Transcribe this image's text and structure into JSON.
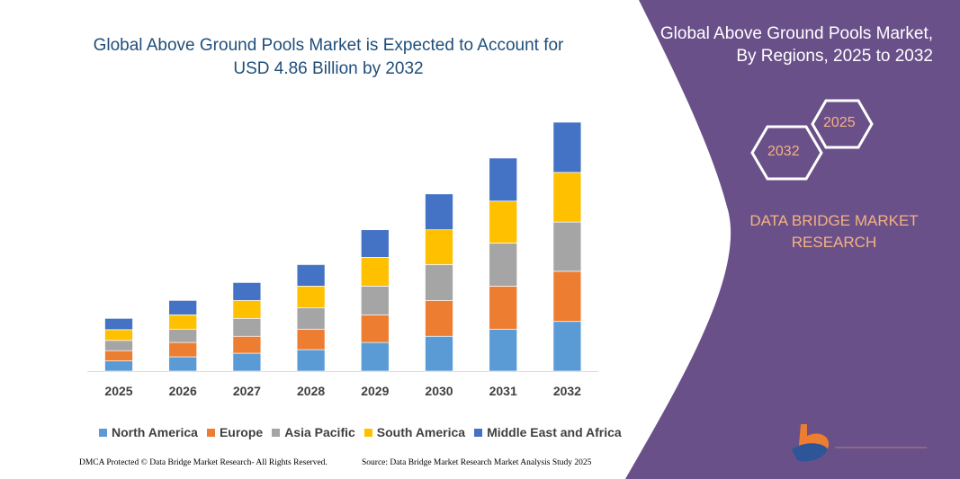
{
  "title": "Global Above Ground Pools Market is Expected to Account for USD 4.86 Billion by 2032",
  "right_panel": {
    "title_line1": "Global Above Ground Pools Market,",
    "title_line2": "By Regions, 2025 to 2032",
    "hex_start": "2025",
    "hex_end": "2032",
    "brand_line1": "DATA BRIDGE MARKET",
    "brand_line2": "RESEARCH",
    "logo_text": "DATA BRIDGE MARKET RESEARCH",
    "panel_color": "#6A5089"
  },
  "footer": {
    "left": "DMCA Protected © Data Bridge Market Research- All Rights Reserved.",
    "right": "Source: Data Bridge Market Research Market Analysis Study 2025"
  },
  "chart_data": {
    "type": "bar",
    "stacked": true,
    "title": "Global Above Ground Pools Market is Expected to Account for USD 4.86 Billion by 2032",
    "xlabel": "",
    "ylabel": "",
    "grid": false,
    "y_axis_shown": false,
    "legend_position": "bottom",
    "categories": [
      "2025",
      "2026",
      "2027",
      "2028",
      "2029",
      "2030",
      "2031",
      "2032"
    ],
    "series": [
      {
        "name": "North America",
        "color": "#5B9BD5",
        "values": [
          0.2,
          0.28,
          0.35,
          0.42,
          0.56,
          0.68,
          0.82,
          0.97
        ]
      },
      {
        "name": "Europe",
        "color": "#ED7D31",
        "values": [
          0.2,
          0.28,
          0.33,
          0.4,
          0.54,
          0.7,
          0.84,
          0.98
        ]
      },
      {
        "name": "Asia Pacific",
        "color": "#A5A5A5",
        "values": [
          0.2,
          0.26,
          0.35,
          0.42,
          0.56,
          0.7,
          0.84,
          0.96
        ]
      },
      {
        "name": "South America",
        "color": "#FFC000",
        "values": [
          0.21,
          0.28,
          0.35,
          0.42,
          0.56,
          0.68,
          0.82,
          0.97
        ]
      },
      {
        "name": "Middle East and Africa",
        "color": "#4472C4",
        "values": [
          0.22,
          0.28,
          0.35,
          0.42,
          0.54,
          0.7,
          0.84,
          0.98
        ]
      }
    ]
  }
}
